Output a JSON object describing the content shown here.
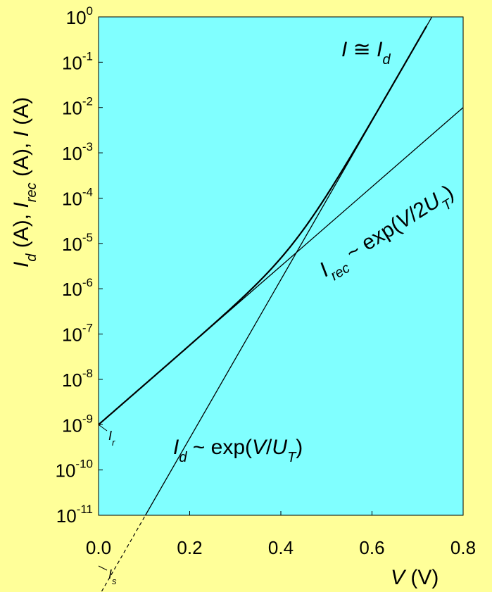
{
  "colors": {
    "background": "#ffff99",
    "plot_area": "#80ffff",
    "line": "#000000"
  },
  "chart_data": {
    "type": "line",
    "yscale": "log",
    "xlim": [
      0.0,
      0.8
    ],
    "ylim": [
      1e-11,
      1
    ],
    "x_ticks": [
      {
        "value": 0.0,
        "label": "0.0"
      },
      {
        "value": 0.2,
        "label": "0.2"
      },
      {
        "value": 0.4,
        "label": "0.4"
      },
      {
        "value": 0.6,
        "label": "0.6"
      },
      {
        "value": 0.8,
        "label": "0.8"
      }
    ],
    "y_ticks": [
      {
        "exp": 0,
        "base": "10",
        "sup": "0"
      },
      {
        "exp": -1,
        "base": "10",
        "sup": "-1"
      },
      {
        "exp": -2,
        "base": "10",
        "sup": "-2"
      },
      {
        "exp": -3,
        "base": "10",
        "sup": "-3"
      },
      {
        "exp": -4,
        "base": "10",
        "sup": "-4"
      },
      {
        "exp": -5,
        "base": "10",
        "sup": "-5"
      },
      {
        "exp": -6,
        "base": "10",
        "sup": "-6"
      },
      {
        "exp": -7,
        "base": "10",
        "sup": "-7"
      },
      {
        "exp": -8,
        "base": "10",
        "sup": "-8"
      },
      {
        "exp": -9,
        "base": "10",
        "sup": "-9"
      },
      {
        "exp": -10,
        "base": "10",
        "sup": "-10"
      },
      {
        "exp": -11,
        "base": "10",
        "sup": "-11"
      }
    ],
    "xlabel": {
      "var": "V",
      "unit": " (V)"
    },
    "ylabel": [
      {
        "t": "I",
        "style": "italic"
      },
      {
        "t": "d",
        "style": "italic-sub"
      },
      {
        "t": " (A), ",
        "style": "normal"
      },
      {
        "t": "I",
        "style": "italic"
      },
      {
        "t": "rec",
        "style": "italic-sub"
      },
      {
        "t": " (A), ",
        "style": "normal"
      },
      {
        "t": "I",
        "style": "italic"
      },
      {
        "t": " (A)",
        "style": "normal"
      }
    ],
    "series": [
      {
        "log10_at_V0": -12.8,
        "log10_at_V0_8": 1.2,
        "x": [
          0.0,
          0.8
        ]
      },
      {
        "log10_at_V0": -9.0,
        "log10_at_V0_8": -2.0,
        "x": [
          0.0,
          0.8
        ]
      },
      {
        "x": [
          0.0,
          0.72
        ],
        "sum": true
      }
    ],
    "annotations": {
      "total": [
        {
          "t": "I",
          "style": "italic"
        },
        {
          "t": " ≅ ",
          "style": "normal"
        },
        {
          "t": "I",
          "style": "italic"
        },
        {
          "t": "d",
          "style": "italic-sub"
        }
      ],
      "recombination": [
        {
          "t": "I",
          "style": "italic"
        },
        {
          "t": "rec",
          "style": "italic-sub"
        },
        {
          "t": " ~ exp(",
          "style": "normal"
        },
        {
          "t": "V",
          "style": "italic"
        },
        {
          "t": "/2",
          "style": "normal"
        },
        {
          "t": "U",
          "style": "italic"
        },
        {
          "t": "T",
          "style": "italic-sub"
        },
        {
          "t": ")",
          "style": "normal"
        }
      ],
      "diffusion": [
        {
          "t": "I",
          "style": "italic"
        },
        {
          "t": "d",
          "style": "italic-sub"
        },
        {
          "t": " ~ exp(",
          "style": "normal"
        },
        {
          "t": "V",
          "style": "italic"
        },
        {
          "t": "/",
          "style": "normal"
        },
        {
          "t": "U",
          "style": "italic"
        },
        {
          "t": "T",
          "style": "italic-sub"
        },
        {
          "t": ")",
          "style": "normal"
        }
      ],
      "ir": [
        {
          "t": "I",
          "style": "italic"
        },
        {
          "t": "r",
          "style": "italic-sub"
        }
      ],
      "is": [
        {
          "t": "I",
          "style": "italic"
        },
        {
          "t": "s",
          "style": "italic-sub"
        }
      ]
    }
  }
}
